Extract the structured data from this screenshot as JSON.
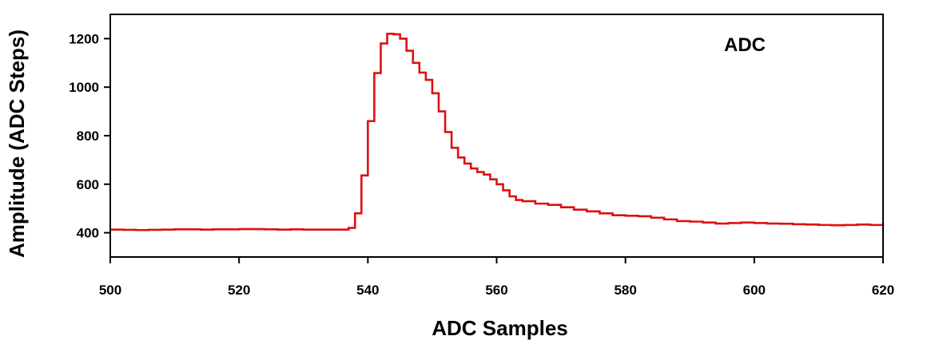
{
  "chart_data": {
    "type": "line",
    "step": true,
    "title": "",
    "annotation": "ADC",
    "xlabel": "ADC Samples",
    "ylabel": "Amplitude (ADC Steps)",
    "xlim": [
      500,
      620
    ],
    "ylim": [
      300,
      1300
    ],
    "xticks": [
      500,
      520,
      540,
      560,
      580,
      600,
      620
    ],
    "yticks": [
      400,
      600,
      800,
      1000,
      1200
    ],
    "grid": false,
    "line_color": "#dd1111",
    "series": [
      {
        "x": [
          500,
          502,
          504,
          506,
          508,
          510,
          512,
          514,
          516,
          518,
          520,
          522,
          524,
          526,
          528,
          530,
          532,
          534,
          536,
          537,
          538,
          539,
          540,
          541,
          542,
          543,
          544,
          545,
          546,
          547,
          548,
          549,
          550,
          551,
          552,
          553,
          554,
          555,
          556,
          557,
          558,
          559,
          560,
          561,
          562,
          563,
          564,
          566,
          568,
          570,
          572,
          574,
          576,
          578,
          580,
          582,
          584,
          586,
          588,
          590,
          592,
          594,
          596,
          598,
          600,
          602,
          604,
          606,
          608,
          610,
          612,
          614,
          616,
          618,
          620
        ],
        "y": [
          413,
          412,
          411,
          412,
          413,
          414,
          414,
          413,
          414,
          414,
          415,
          415,
          414,
          413,
          414,
          413,
          413,
          413,
          413,
          420,
          480,
          636,
          860,
          1058,
          1180,
          1220,
          1218,
          1200,
          1150,
          1100,
          1060,
          1030,
          975,
          900,
          815,
          750,
          710,
          685,
          665,
          650,
          640,
          620,
          600,
          575,
          550,
          535,
          530,
          520,
          515,
          505,
          495,
          488,
          480,
          472,
          470,
          468,
          462,
          455,
          448,
          446,
          442,
          438,
          440,
          442,
          440,
          438,
          437,
          435,
          434,
          432,
          431,
          432,
          434,
          432,
          428
        ]
      }
    ]
  }
}
